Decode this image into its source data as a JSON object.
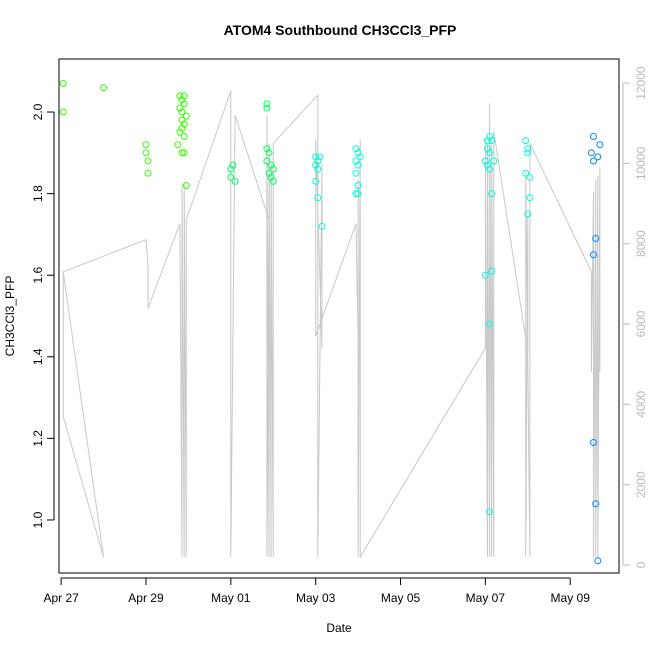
{
  "chart_data": {
    "type": "scatter",
    "title": "ATOM4 Southbound CH3CCl3_PFP",
    "xlabel": "Date",
    "ylabel": "CH3CCl3_PFP",
    "xlim": [
      -0.05,
      13.15
    ],
    "ylim": [
      0.87,
      2.13
    ],
    "x_ticks": [
      0,
      2,
      4,
      6,
      8,
      10,
      12
    ],
    "x_tick_labels": [
      "Apr 27",
      "Apr 29",
      "May 01",
      "May 03",
      "May 05",
      "May 07",
      "May 09"
    ],
    "y_ticks": [
      1.0,
      1.2,
      1.4,
      1.6,
      1.8,
      2.0
    ],
    "y_tick_labels": [
      "1.0",
      "1.2",
      "1.4",
      "1.6",
      "1.8",
      "2.0"
    ],
    "y2_lim": [
      -200,
      12600
    ],
    "y2_ticks": [
      0,
      2000,
      4000,
      6000,
      8000,
      10000,
      12000
    ],
    "y2_tick_labels": [
      "0",
      "2000",
      "4000",
      "6000",
      "8000",
      "10000",
      "12000"
    ],
    "colors": {
      "altitude_line": "#c8c8c8",
      "right_axis": "#bbbbbb",
      "green": "#33ff00",
      "mint": "#00ff66",
      "cyan": "#00ffdd",
      "sky": "#00bbff",
      "blue": "#0088ff"
    },
    "series": [
      {
        "name": "points",
        "color_key": "green",
        "points": [
          [
            0.05,
            2.07
          ],
          [
            0.05,
            2.0
          ],
          [
            1.0,
            2.06
          ],
          [
            2.0,
            1.92
          ],
          [
            2.0,
            1.9
          ],
          [
            2.05,
            1.88
          ],
          [
            2.05,
            1.85
          ],
          [
            2.8,
            2.04
          ],
          [
            2.85,
            2.03
          ],
          [
            2.9,
            2.04
          ],
          [
            2.9,
            2.02
          ],
          [
            2.85,
            2.0
          ],
          [
            2.8,
            2.01
          ],
          [
            2.85,
            1.98
          ],
          [
            2.95,
            1.99
          ],
          [
            2.9,
            1.97
          ],
          [
            2.85,
            1.96
          ],
          [
            2.8,
            1.95
          ],
          [
            2.9,
            1.94
          ],
          [
            2.75,
            1.92
          ],
          [
            2.85,
            1.9
          ],
          [
            2.9,
            1.9
          ],
          [
            2.95,
            1.82
          ]
        ]
      },
      {
        "name": "points",
        "color_key": "mint",
        "points": [
          [
            4.0,
            1.86
          ],
          [
            4.05,
            1.87
          ],
          [
            4.0,
            1.84
          ],
          [
            4.1,
            1.83
          ],
          [
            4.85,
            2.02
          ],
          [
            4.85,
            2.01
          ],
          [
            4.85,
            1.91
          ],
          [
            4.9,
            1.9
          ],
          [
            4.85,
            1.88
          ],
          [
            4.95,
            1.87
          ],
          [
            5.0,
            1.86
          ],
          [
            4.9,
            1.85
          ],
          [
            4.95,
            1.84
          ],
          [
            5.0,
            1.83
          ]
        ]
      },
      {
        "name": "points",
        "color_key": "cyan",
        "points": [
          [
            6.0,
            1.89
          ],
          [
            6.05,
            1.88
          ],
          [
            6.1,
            1.89
          ],
          [
            6.0,
            1.87
          ],
          [
            6.05,
            1.86
          ],
          [
            6.0,
            1.83
          ],
          [
            6.05,
            1.79
          ],
          [
            6.15,
            1.72
          ],
          [
            6.95,
            1.91
          ],
          [
            7.0,
            1.9
          ],
          [
            6.95,
            1.88
          ],
          [
            7.05,
            1.89
          ],
          [
            7.0,
            1.87
          ],
          [
            6.95,
            1.85
          ],
          [
            7.0,
            1.82
          ],
          [
            6.95,
            1.8
          ],
          [
            7.0,
            1.8
          ],
          [
            10.05,
            1.93
          ],
          [
            10.1,
            1.94
          ],
          [
            10.15,
            1.93
          ],
          [
            10.05,
            1.91
          ],
          [
            10.1,
            1.9
          ],
          [
            10.0,
            1.88
          ],
          [
            10.05,
            1.87
          ],
          [
            10.1,
            1.86
          ],
          [
            10.2,
            1.88
          ],
          [
            10.15,
            1.8
          ],
          [
            10.0,
            1.6
          ],
          [
            10.15,
            1.61
          ],
          [
            10.1,
            1.48
          ],
          [
            10.1,
            1.02
          ],
          [
            10.95,
            1.93
          ],
          [
            11.0,
            1.91
          ],
          [
            11.0,
            1.9
          ],
          [
            10.95,
            1.85
          ],
          [
            11.05,
            1.84
          ],
          [
            11.05,
            1.79
          ],
          [
            11.0,
            1.75
          ]
        ]
      },
      {
        "name": "points",
        "color_key": "blue",
        "points": [
          [
            12.55,
            1.94
          ],
          [
            12.5,
            1.9
          ],
          [
            12.55,
            1.88
          ],
          [
            12.65,
            1.89
          ],
          [
            12.7,
            1.92
          ],
          [
            12.6,
            1.69
          ],
          [
            12.55,
            1.65
          ],
          [
            12.55,
            1.19
          ],
          [
            12.6,
            1.04
          ],
          [
            12.65,
            0.9
          ]
        ]
      }
    ],
    "altitude_path_t": [
      0.05,
      0.05,
      1.0,
      0.05,
      0.05,
      2.0,
      2.05,
      2.05,
      2.8,
      2.85,
      2.85,
      2.9,
      2.9,
      2.95,
      2.95,
      4.0,
      4.0,
      4.1,
      4.9,
      4.85,
      4.85,
      4.9,
      4.9,
      4.95,
      4.95,
      5.0,
      5.0,
      6.05,
      6.05,
      6.15,
      6.15,
      6.0,
      6.0,
      6.95,
      7.0,
      7.0,
      7.0,
      7.05,
      7.05,
      10.0,
      10.0,
      10.05,
      10.05,
      10.1,
      10.1,
      10.15,
      10.15,
      10.2,
      10.2,
      11.0,
      11.0,
      10.95,
      10.95,
      11.05,
      11.05,
      12.5,
      12.5,
      12.55,
      12.55,
      12.6,
      12.6,
      12.65,
      12.65,
      12.7,
      12.7
    ],
    "altitude_path_alt": [
      3700,
      7300,
      200,
      3700,
      7300,
      8100,
      7400,
      6400,
      8500,
      200,
      9500,
      200,
      9500,
      200,
      8600,
      11800,
      200,
      11200,
      8600,
      200,
      11200,
      200,
      10500,
      200,
      10000,
      200,
      10500,
      11700,
      200,
      10000,
      5400,
      10600,
      5700,
      8500,
      5700,
      9600,
      200,
      10600,
      200,
      5400,
      10600,
      200,
      10500,
      200,
      11500,
      200,
      10600,
      200,
      10800,
      5300,
      8700,
      200,
      9800,
      200,
      10500,
      7300,
      4800,
      9300,
      200,
      9600,
      200,
      9700,
      200,
      9900,
      4800
    ]
  }
}
